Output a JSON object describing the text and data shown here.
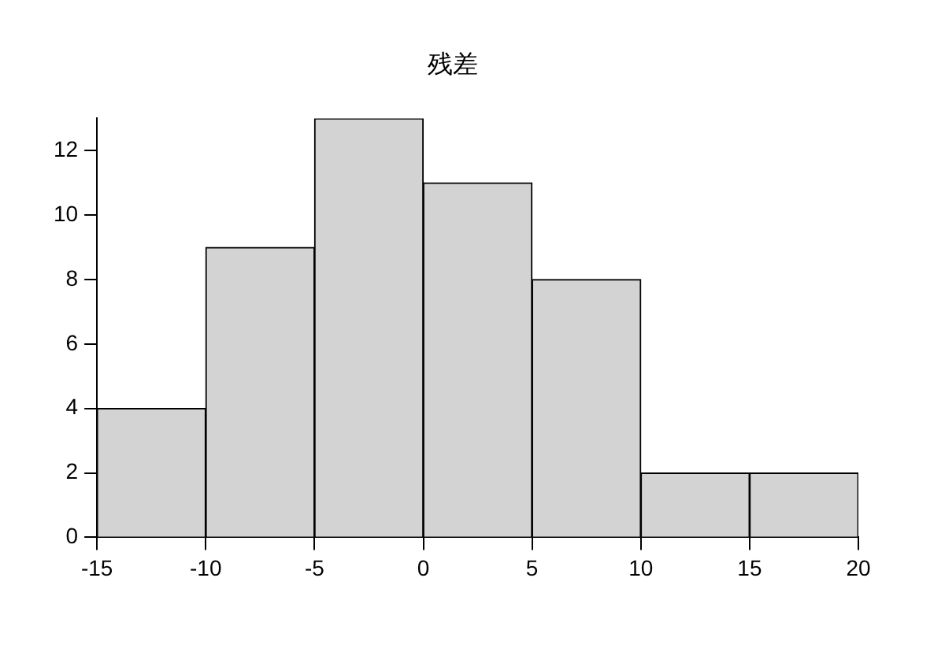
{
  "chart_data": {
    "type": "histogram",
    "title": "残差",
    "bins": [
      -15,
      -10,
      -5,
      0,
      5,
      10,
      15,
      20
    ],
    "values": [
      4,
      9,
      13,
      11,
      8,
      2,
      2
    ],
    "color": "#d3d3d3",
    "xlim": [
      -15,
      20
    ],
    "xticks": [
      -15,
      -10,
      -5,
      0,
      5,
      10,
      15,
      20
    ],
    "ylim": [
      0,
      13
    ],
    "yticks": [
      0,
      2,
      4,
      6,
      8,
      10,
      12
    ]
  }
}
